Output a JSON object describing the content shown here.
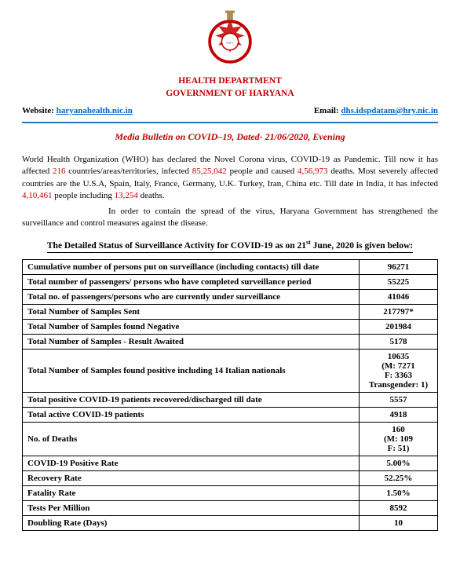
{
  "colors": {
    "primary_red": "#c00000",
    "link_blue": "#0563c1",
    "divider_blue": "#2e74b5",
    "text_black": "#000000"
  },
  "header": {
    "dept": "HEALTH DEPARTMENT",
    "govt": "GOVERNMENT OF HARYANA",
    "website_label": "Website: ",
    "website_value": "haryanahealth.nic.in",
    "email_label": "Email: ",
    "email_value": "dhs.idspdatam@hry.nic.in"
  },
  "bulletin": {
    "title_prefix": "Media Bulletin on COVID–19",
    "title_suffix": ", Dated- 21/06/2020, Evening"
  },
  "para1": {
    "t1": "World Health Organization (WHO) has declared the Novel Corona virus, COVID-19 as Pandemic. Till now it has affected ",
    "n_countries": "216",
    "t2": " countries/areas/territories, infected ",
    "n_infected": "85,25,042",
    "t3": " people and caused ",
    "n_deaths": "4,56,973",
    "t4": " deaths. Most severely affected countries are the U.S.A, Spain, Italy, France, Germany, U.K. Turkey, Iran, China etc. Till date in India, it has infected ",
    "n_india_inf": "4,10,461",
    "t5": " people including ",
    "n_india_deaths": "13,254",
    "t6": " deaths."
  },
  "para2": "In order to contain the spread of the virus, Haryana Government has strengthened the surveillance and control measures against the disease.",
  "section_title_pre": "The Detailed Status of Surveillance Activity for COVID-19 as on 21",
  "section_title_sup": "st",
  "section_title_post": "  June, 2020 is given below:",
  "table": [
    {
      "label": "Cumulative number of persons put on surveillance (including contacts) till date",
      "value": "96271"
    },
    {
      "label": "Total number of passengers/ persons who have completed surveillance period",
      "value": "55225"
    },
    {
      "label": "Total no. of passengers/persons who are currently under surveillance",
      "value": "41046"
    },
    {
      "label": "Total Number of Samples Sent",
      "value": "217797*"
    },
    {
      "label": "Total Number of Samples found Negative",
      "value": "201984"
    },
    {
      "label": "Total Number of Samples - Result Awaited",
      "value": "5178"
    },
    {
      "label": "Total Number of Samples found positive including 14 Italian nationals",
      "value": "10635\n(M: 7271\nF: 3363\nTransgender: 1)"
    },
    {
      "label": "Total positive COVID-19 patients recovered/discharged till date",
      "value": "5557"
    },
    {
      "label": "Total active COVID-19 patients",
      "value": "4918"
    },
    {
      "label": "No. of Deaths",
      "value": "160\n(M: 109\nF: 51)"
    },
    {
      "label": "COVID-19 Positive Rate",
      "value": "5.00%"
    },
    {
      "label": "Recovery Rate",
      "value": "52.25%"
    },
    {
      "label": "Fatality Rate",
      "value": "1.50%"
    },
    {
      "label": "Tests Per Million",
      "value": "8592"
    },
    {
      "label": "Doubling Rate (Days)",
      "value": "10"
    }
  ]
}
